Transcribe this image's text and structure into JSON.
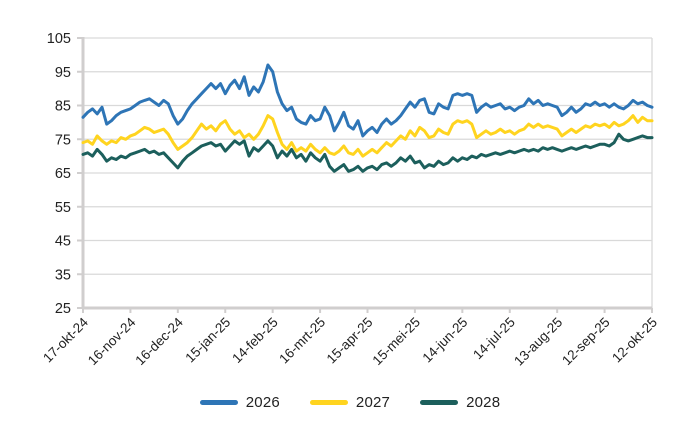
{
  "chart_data": {
    "type": "line",
    "title": "",
    "x_axis": {
      "tick_labels": [
        "17-okt-24",
        "16-nov-24",
        "16-dec-24",
        "15-jan-25",
        "14-feb-25",
        "16-mrt-25",
        "15-apr-25",
        "15-mei-25",
        "14-jun-25",
        "14-jul-25",
        "13-aug-25",
        "12-sep-25",
        "12-okt-25"
      ],
      "tick_interval_days": 30,
      "total_days": 360,
      "label_rotation_deg": -45
    },
    "y_axis": {
      "min": 25,
      "max": 105,
      "tick_step": 10,
      "tick_labels": [
        "105",
        "95",
        "85",
        "75",
        "65",
        "55",
        "45",
        "35",
        "25"
      ]
    },
    "grid": "horizontal",
    "legend_position": "bottom-center",
    "colors": {
      "grid": "#D9D9D9",
      "axis": "#D0CECE",
      "text": "#222222",
      "background": "#FFFFFF"
    },
    "sample_step_days": 3,
    "series": [
      {
        "name": "2026",
        "color": "#2E75B6",
        "values": [
          81.5,
          83,
          84,
          82.5,
          84.5,
          79.5,
          80.5,
          82,
          83,
          83.5,
          84,
          85,
          86,
          86.5,
          87,
          86,
          85,
          86.5,
          85.5,
          82,
          79.5,
          81,
          83.5,
          85.5,
          87,
          88.5,
          90,
          91.5,
          90,
          91.5,
          88.5,
          91,
          92.5,
          90,
          93.5,
          88,
          90.5,
          89,
          92,
          97,
          95,
          89,
          85.5,
          83.5,
          84.5,
          81,
          80,
          79.5,
          82,
          80.5,
          81,
          84.5,
          82,
          77.5,
          80,
          83,
          79,
          78,
          80.5,
          76,
          77.5,
          78.5,
          77,
          79.5,
          81,
          79.5,
          80.5,
          82,
          84,
          86,
          84.5,
          86.5,
          87,
          83,
          82.5,
          85.5,
          84.5,
          84,
          88,
          88.5,
          88,
          88.5,
          88,
          83,
          84.5,
          85.5,
          84.5,
          85,
          85.5,
          84,
          84.5,
          83.5,
          84.5,
          85,
          87,
          85.5,
          86.5,
          85,
          85.5,
          85,
          84.5,
          82,
          83,
          84.5,
          83,
          84,
          85.5,
          85,
          86,
          85,
          85.5,
          84.5,
          85.5,
          84.5,
          84,
          85,
          86.5,
          85.5,
          86,
          85,
          84.5
        ]
      },
      {
        "name": "2027",
        "color": "#FFD41F",
        "values": [
          74,
          74.5,
          73.5,
          76,
          74.5,
          73.5,
          74.5,
          74,
          75.5,
          75,
          76,
          76.5,
          77.5,
          78.5,
          78,
          77,
          77.5,
          78,
          76.5,
          74,
          72,
          73,
          74,
          75.5,
          77.5,
          79.5,
          78,
          79,
          77.5,
          79.5,
          80.5,
          78,
          76.5,
          77.5,
          75.5,
          76.5,
          75,
          76.5,
          79,
          82,
          81,
          77,
          73.5,
          72,
          74,
          71.5,
          72.5,
          71.5,
          73.5,
          72,
          71,
          72.5,
          71,
          70.5,
          71.5,
          73,
          71,
          70.5,
          72,
          70,
          71,
          72,
          71,
          72.5,
          74,
          73,
          74.5,
          76,
          75,
          77.5,
          76,
          78.5,
          77.5,
          75.5,
          76,
          78,
          77,
          76.5,
          79.5,
          80.5,
          80,
          80.5,
          79.5,
          75.5,
          76.5,
          77.5,
          76.5,
          77,
          78,
          77,
          77.5,
          76.5,
          77.5,
          78,
          79.5,
          78.5,
          79.5,
          78.5,
          79,
          78.5,
          78,
          76,
          77,
          78,
          77,
          78,
          79,
          78.5,
          79.5,
          79,
          79.5,
          78.5,
          80,
          79,
          79.5,
          80.5,
          82,
          80,
          81.5,
          80.5,
          80.5
        ]
      },
      {
        "name": "2028",
        "color": "#1C5F5C",
        "values": [
          70.5,
          71,
          70,
          72,
          70.5,
          68.5,
          69.5,
          69,
          70,
          69.5,
          70.5,
          71,
          71.5,
          72,
          71,
          71.5,
          70.5,
          71,
          69.5,
          68,
          66.5,
          68.5,
          70,
          71,
          72,
          73,
          73.5,
          74,
          73,
          73.5,
          71.5,
          73,
          74.5,
          73.5,
          74.5,
          70,
          72.5,
          71.5,
          73,
          74.5,
          73,
          69.5,
          71.5,
          70,
          72,
          69.5,
          70.5,
          68.5,
          71,
          69.5,
          68.5,
          70.5,
          67,
          65.5,
          66.5,
          67.5,
          65.5,
          66,
          67,
          65.5,
          66.5,
          67,
          66,
          67.5,
          68,
          67,
          68,
          69.5,
          68.5,
          70,
          68,
          68.5,
          66.5,
          67.5,
          67,
          68.5,
          67.5,
          68,
          69.5,
          68.5,
          69.5,
          69,
          70,
          69.5,
          70.5,
          70,
          70.5,
          71,
          70.5,
          71,
          71.5,
          71,
          71.5,
          72,
          71.5,
          72,
          71.5,
          72.5,
          72,
          72.5,
          72,
          71.5,
          72,
          72.5,
          72,
          72.5,
          73,
          72.5,
          73,
          73.5,
          73.5,
          73,
          74,
          76.5,
          75,
          74.5,
          75,
          75.5,
          76,
          75.5,
          75.5
        ]
      }
    ]
  }
}
